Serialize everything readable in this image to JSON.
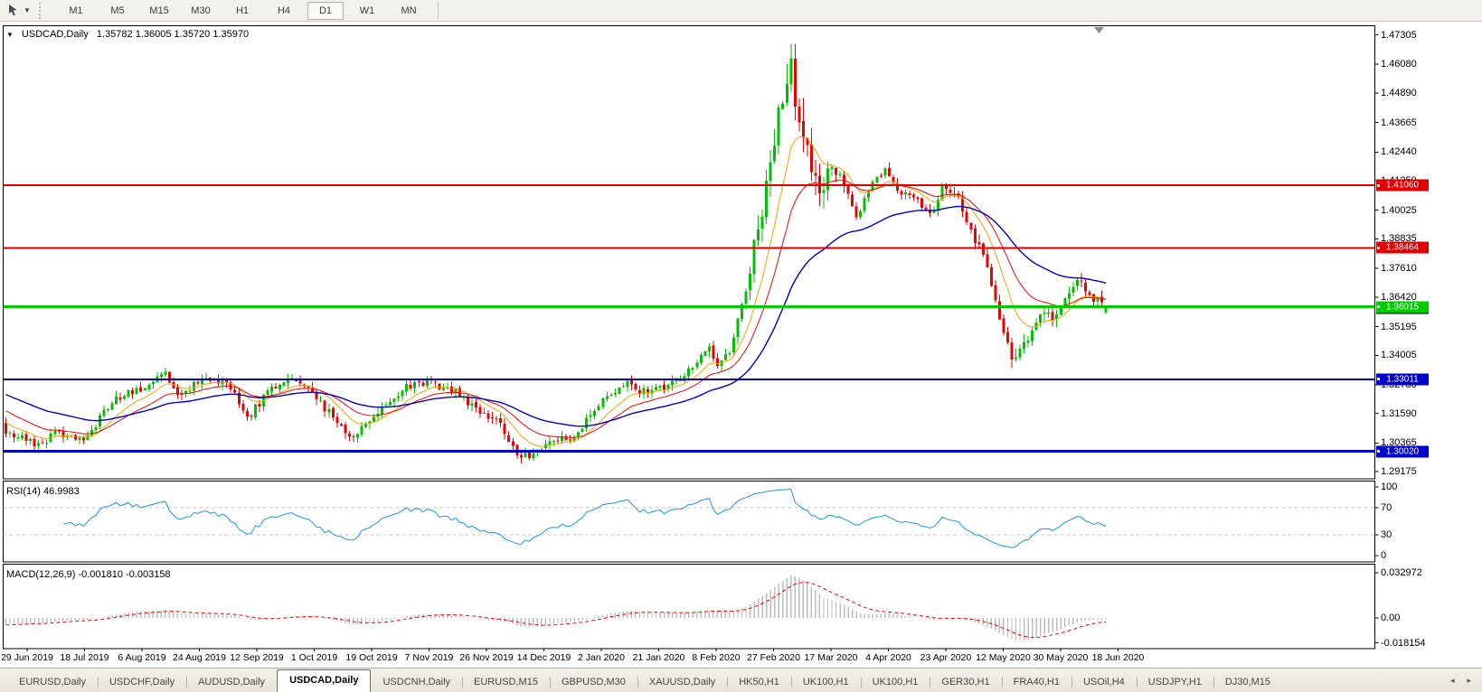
{
  "toolbar": {
    "timeframes": [
      "M1",
      "M5",
      "M15",
      "M30",
      "H1",
      "H4",
      "D1",
      "W1",
      "MN"
    ],
    "active_timeframe": "D1"
  },
  "chart": {
    "title": "USDCAD,Daily",
    "ohlc": "1.35782 1.36005 1.35720 1.35970",
    "price_axis": [
      "1.47305",
      "1.46080",
      "1.44890",
      "1.43665",
      "1.42440",
      "1.41250",
      "1.40025",
      "1.38835",
      "1.37610",
      "1.36420",
      "1.35195",
      "1.34005",
      "1.32780",
      "1.31590",
      "1.30365",
      "1.29175"
    ],
    "dates": [
      "29 Jun 2019",
      "18 Jul 2019",
      "6 Aug 2019",
      "24 Aug 2019",
      "12 Sep 2019",
      "1 Oct 2019",
      "19 Oct 2019",
      "7 Nov 2019",
      "26 Nov 2019",
      "14 Dec 2019",
      "2 Jan 2020",
      "21 Jan 2020",
      "8 Feb 2020",
      "27 Feb 2020",
      "17 Mar 2020",
      "4 Apr 2020",
      "23 Apr 2020",
      "12 May 2020",
      "30 May 2020",
      "18 Jun 2020"
    ]
  },
  "rsi": {
    "label": "RSI(14) 46.9983",
    "ticks": [
      {
        "v": 100,
        "label": "100"
      },
      {
        "v": 70,
        "label": "70"
      },
      {
        "v": 30,
        "label": "30"
      },
      {
        "v": 0,
        "label": "0"
      }
    ],
    "levels": [
      70,
      30
    ]
  },
  "macd": {
    "label": "MACD(12,26,9) -0.001810 -0.003158",
    "ticks": [
      {
        "v": 0.032972,
        "label": "0.032972"
      },
      {
        "v": 0,
        "label": "0.00"
      },
      {
        "v": -0.018154,
        "label": "-0.018154"
      }
    ]
  },
  "tabs": {
    "active_index": 3,
    "items": [
      "EURUSD,Daily",
      "USDCHF,Daily",
      "AUDUSD,Daily",
      "USDCAD,Daily",
      "USDCNH,Daily",
      "EURUSD,M15",
      "GBPUSD,M30",
      "XAUUSD,Daily",
      "HK50,H1",
      "UK100,H1",
      "UK100,H1",
      "GER30,H1",
      "FRA40,H1",
      "USOil,H4",
      "USDJPY,H1",
      "DJ30,M15"
    ],
    "scroll_left_icon": "◂",
    "scroll_right_icon": "▸"
  },
  "chart_data": {
    "type": "candlestick",
    "symbol": "USDCAD",
    "timeframe": "Daily",
    "current_ohlc": {
      "open": 1.35782,
      "high": 1.36005,
      "low": 1.3572,
      "close": 1.3597
    },
    "y_range": [
      1.2888,
      1.4768
    ],
    "num_candles": 270,
    "up_color": "#00C000",
    "down_color": "#EE0000",
    "price_path_anchors": [
      [
        0,
        1.309
      ],
      [
        0.015,
        1.306
      ],
      [
        0.03,
        1.3022
      ],
      [
        0.045,
        1.308
      ],
      [
        0.06,
        1.305
      ],
      [
        0.075,
        1.3065
      ],
      [
        0.09,
        1.318
      ],
      [
        0.105,
        1.323
      ],
      [
        0.125,
        1.327
      ],
      [
        0.143,
        1.3335
      ],
      [
        0.155,
        1.324
      ],
      [
        0.168,
        1.327
      ],
      [
        0.182,
        1.331
      ],
      [
        0.2,
        1.329
      ],
      [
        0.22,
        1.315
      ],
      [
        0.24,
        1.325
      ],
      [
        0.26,
        1.332
      ],
      [
        0.278,
        1.3245
      ],
      [
        0.298,
        1.314
      ],
      [
        0.316,
        1.3058
      ],
      [
        0.338,
        1.3165
      ],
      [
        0.362,
        1.3265
      ],
      [
        0.385,
        1.329
      ],
      [
        0.408,
        1.3252
      ],
      [
        0.428,
        1.317
      ],
      [
        0.45,
        1.311
      ],
      [
        0.466,
        1.2968
      ],
      [
        0.48,
        1.2998
      ],
      [
        0.497,
        1.3052
      ],
      [
        0.518,
        1.3065
      ],
      [
        0.542,
        1.321
      ],
      [
        0.563,
        1.3292
      ],
      [
        0.578,
        1.3248
      ],
      [
        0.598,
        1.3262
      ],
      [
        0.62,
        1.333
      ],
      [
        0.638,
        1.3442
      ],
      [
        0.648,
        1.3352
      ],
      [
        0.658,
        1.3425
      ],
      [
        0.671,
        1.364
      ],
      [
        0.684,
        1.394
      ],
      [
        0.698,
        1.422
      ],
      [
        0.711,
        1.463
      ],
      [
        0.719,
        1.443
      ],
      [
        0.729,
        1.4255
      ],
      [
        0.739,
        1.4025
      ],
      [
        0.751,
        1.4195
      ],
      [
        0.762,
        1.4105
      ],
      [
        0.774,
        1.3965
      ],
      [
        0.786,
        1.4105
      ],
      [
        0.799,
        1.4165
      ],
      [
        0.813,
        1.4085
      ],
      [
        0.828,
        1.4058
      ],
      [
        0.841,
        1.3975
      ],
      [
        0.853,
        1.4115
      ],
      [
        0.866,
        1.4055
      ],
      [
        0.878,
        1.3925
      ],
      [
        0.891,
        1.3765
      ],
      [
        0.903,
        1.3565
      ],
      [
        0.915,
        1.3395
      ],
      [
        0.927,
        1.3448
      ],
      [
        0.939,
        1.3588
      ],
      [
        0.951,
        1.3548
      ],
      [
        0.963,
        1.3648
      ],
      [
        0.975,
        1.3712
      ],
      [
        0.987,
        1.3645
      ],
      [
        1,
        1.3597
      ]
    ],
    "moving_averages": [
      {
        "period": 10,
        "color": "#FFA000",
        "seed": 1.313,
        "width": 1
      },
      {
        "period": 20,
        "color": "#FF0000",
        "seed": 1.318,
        "width": 1
      },
      {
        "period": 45,
        "color": "#0000CC",
        "seed": 1.3245,
        "width": 1.4
      }
    ],
    "horizontal_lines": [
      {
        "value": 1.4106,
        "label": "1.41060",
        "color": "#E00000",
        "width": 2
      },
      {
        "value": 1.38464,
        "label": "1.38464",
        "color": "#E00000",
        "width": 2
      },
      {
        "value": 1.36015,
        "label": "1.36015",
        "color": "#00CC00",
        "width": 3
      },
      {
        "value": 1.33011,
        "label": "1.33011",
        "color": "#0000CC",
        "width": 2
      },
      {
        "value": 1.3002,
        "label": "1.30020",
        "color": "#0000CC",
        "width": 3
      }
    ],
    "bid_tag": {
      "value": 1.3597,
      "label": "1.35970",
      "color": "#000000"
    },
    "rsi": {
      "period": 14,
      "current": 46.9983,
      "levels": [
        70,
        30
      ],
      "range": [
        0,
        100
      ],
      "color": "#1E90FF"
    },
    "macd": {
      "fast": 12,
      "slow": 26,
      "signal_period": 9,
      "current_macd": -0.00181,
      "current_signal": -0.003158,
      "range": [
        -0.018154,
        0.032972
      ],
      "histogram_color": "#BDBDBD",
      "signal_color": "#FF0000"
    }
  }
}
